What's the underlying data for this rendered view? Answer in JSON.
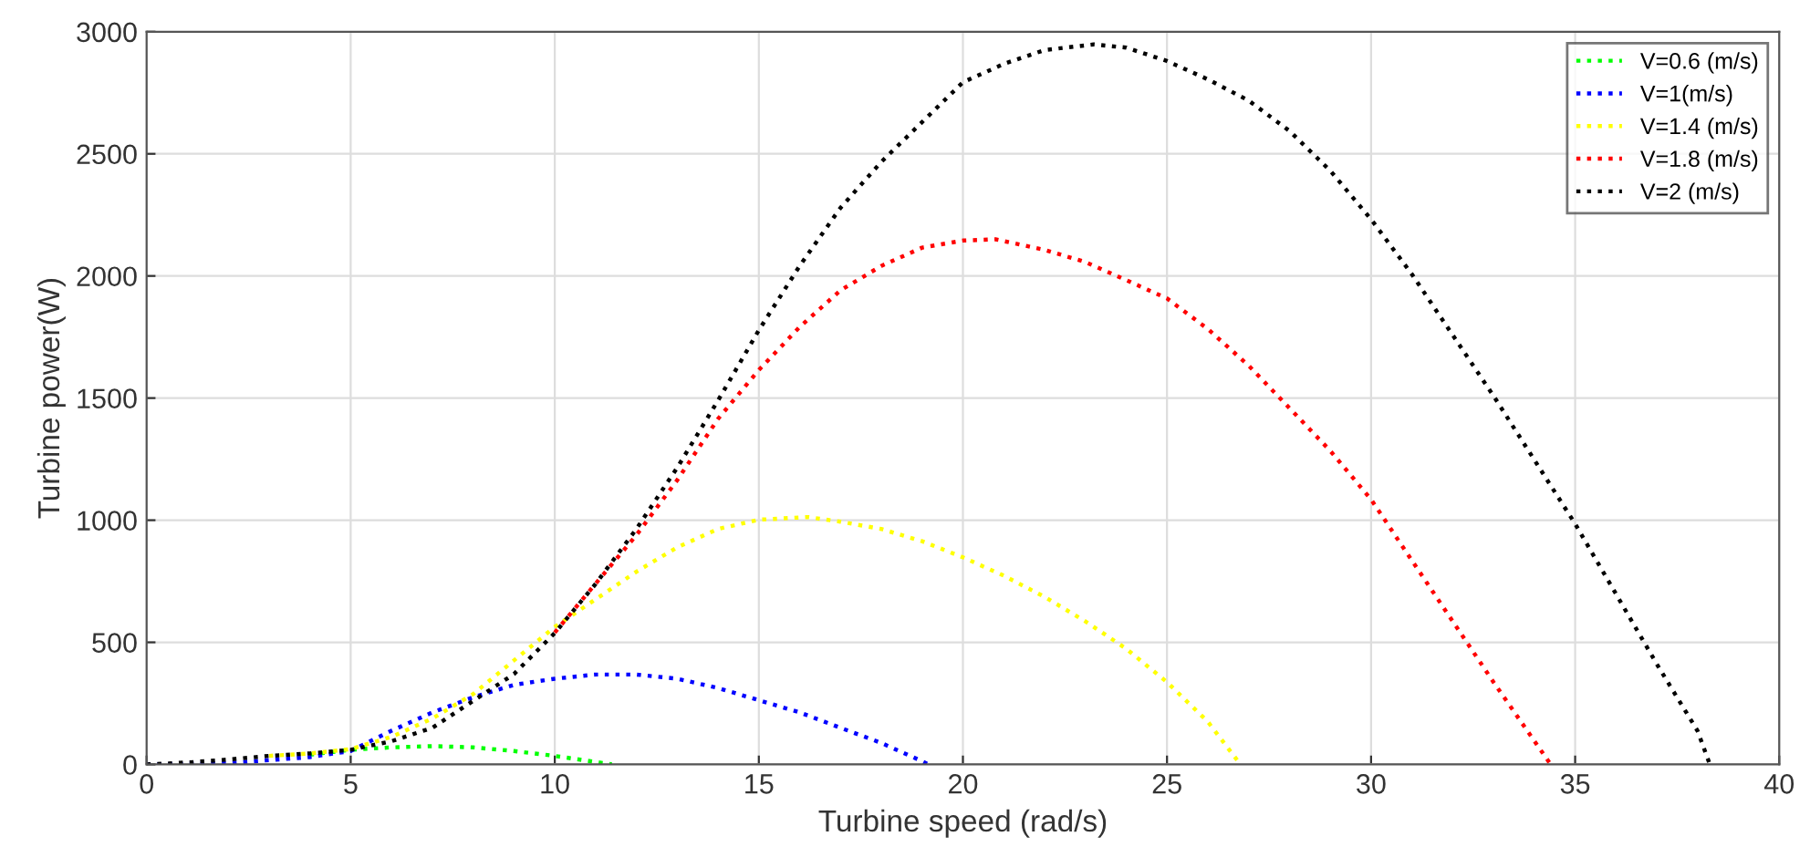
{
  "chart_data": {
    "type": "line",
    "xlabel": "Turbine speed (rad/s)",
    "ylabel": "Turbine power(W)",
    "xlim": [
      0,
      40
    ],
    "xticks": [
      0,
      5,
      10,
      15,
      20,
      25,
      30,
      35,
      40
    ],
    "ylim": [
      0,
      3000
    ],
    "yticks": [
      0,
      500,
      1000,
      1500,
      2000,
      2500,
      3000
    ],
    "grid": true,
    "legend": "top right",
    "line_style": "dotted",
    "series": [
      {
        "name": "V=0.6 (m/s)",
        "color": "#00ff00",
        "x": [
          4,
          5,
          6,
          7,
          8,
          9,
          10,
          11,
          11.4
        ],
        "values": [
          40,
          60,
          70,
          75,
          70,
          55,
          35,
          10,
          0
        ]
      },
      {
        "name": "V=1(m/s)",
        "color": "#0000ff",
        "x": [
          0,
          2,
          4,
          5,
          6,
          7,
          8,
          9,
          10,
          11,
          12,
          13,
          14,
          15,
          16,
          17,
          18,
          19,
          19.15
        ],
        "values": [
          0,
          5,
          30,
          55,
          138,
          213,
          275,
          326,
          351,
          368,
          368,
          351,
          313,
          263,
          213,
          150,
          88,
          13,
          0
        ]
      },
      {
        "name": "V=1.4 (m/s)",
        "color": "#ffff00",
        "x": [
          3,
          4,
          5,
          6,
          7,
          8,
          9,
          10,
          11,
          12,
          13,
          14,
          15,
          16.2,
          17,
          18,
          19,
          20,
          21,
          22,
          23,
          24,
          25,
          26,
          26.8
        ],
        "values": [
          35,
          45,
          63,
          113,
          188,
          288,
          426,
          563,
          676,
          789,
          889,
          964,
          1002,
          1013,
          994,
          964,
          914,
          848,
          773,
          686,
          586,
          474,
          337,
          175,
          0
        ]
      },
      {
        "name": "V=1.8 (m/s)",
        "color": "#ff0000",
        "x": [
          10,
          11,
          12,
          13,
          14,
          15,
          16,
          17,
          18,
          19,
          20,
          20.8,
          22,
          23,
          24,
          25,
          26,
          27,
          28,
          29,
          30,
          31,
          32,
          33,
          34.4
        ],
        "values": [
          540,
          740,
          939,
          1164,
          1415,
          1615,
          1791,
          1941,
          2041,
          2116,
          2145,
          2150,
          2107,
          2057,
          1983,
          1908,
          1783,
          1633,
          1459,
          1284,
          1085,
          835,
          586,
          337,
          0
        ]
      },
      {
        "name": "V=2 (m/s)",
        "color": "#000000",
        "x": [
          0,
          1,
          2,
          3,
          4,
          5,
          6,
          7,
          8,
          9,
          10,
          11,
          12,
          13,
          14,
          15,
          16,
          17,
          18,
          19,
          20,
          21,
          22,
          23.2,
          24,
          25,
          26,
          27,
          28,
          29,
          30,
          31,
          32,
          33,
          34,
          35,
          36,
          37,
          38,
          38.3
        ],
        "values": [
          0,
          8,
          20,
          35,
          45,
          60,
          95,
          150,
          260,
          370,
          538,
          739,
          964,
          1215,
          1490,
          1778,
          2041,
          2279,
          2467,
          2630,
          2793,
          2868,
          2925,
          2948,
          2935,
          2880,
          2805,
          2718,
          2594,
          2431,
          2232,
          2007,
          1758,
          1509,
          1247,
          985,
          698,
          411,
          137,
          0
        ]
      }
    ]
  }
}
